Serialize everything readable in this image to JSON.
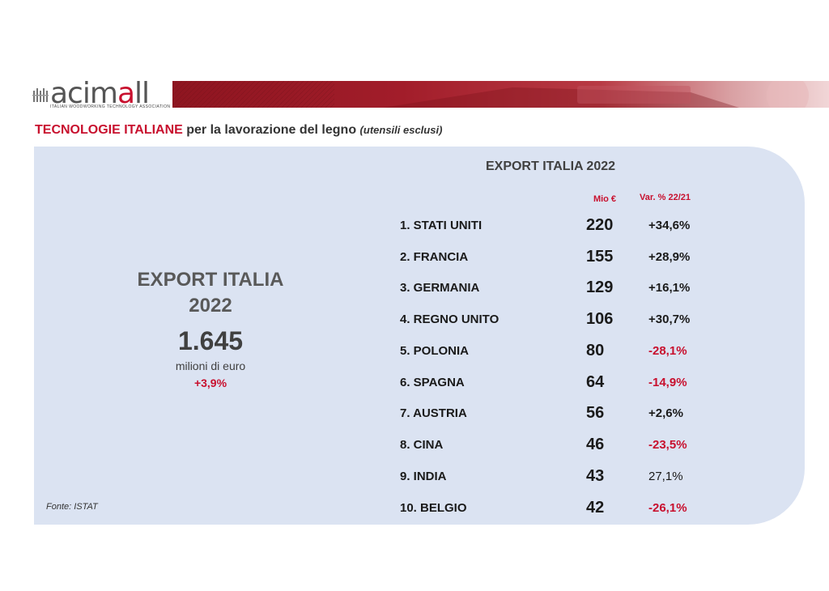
{
  "logo": {
    "wordmark_pre": "acim",
    "wordmark_accent": "a",
    "wordmark_post": "ll",
    "tagline": "ITALIAN WOODWORKING TECHNOLOGY ASSOCIATION"
  },
  "heading": {
    "highlight": "TECNOLOGIE ITALIANE",
    "main": " per la lavorazione del legno ",
    "note": "(utensili esclusi)"
  },
  "summary": {
    "title_line1": "EXPORT ITALIA",
    "title_line2": "2022",
    "value": "1.645",
    "unit": "milioni di euro",
    "change": "+3,9%"
  },
  "source": "Fonte: ISTAT",
  "table": {
    "title": "EXPORT ITALIA 2022",
    "col_value": "Mio €",
    "col_change": "Var. % 22/21",
    "rows": [
      {
        "country": "1. STATI UNITI",
        "value": "220",
        "change": "+34,6%"
      },
      {
        "country": "2. FRANCIA",
        "value": "155",
        "change": "+28,9%"
      },
      {
        "country": "3. GERMANIA",
        "value": "129",
        "change": "+16,1%"
      },
      {
        "country": "4. REGNO UNITO",
        "value": "106",
        "change": "+30,7%"
      },
      {
        "country": "5. POLONIA",
        "value": "80",
        "change": "-28,1%"
      },
      {
        "country": "6. SPAGNA",
        "value": "64",
        "change": "-14,9%"
      },
      {
        "country": "7. AUSTRIA",
        "value": "56",
        "change": "+2,6%"
      },
      {
        "country": "8. CINA",
        "value": "46",
        "change": "-23,5%"
      },
      {
        "country": "9. INDIA",
        "value": "43",
        "change": "27,1%"
      },
      {
        "country": "10. BELGIO",
        "value": "42",
        "change": "-26,1%"
      }
    ]
  },
  "colors": {
    "accent": "#c8102e",
    "panel": "#dbe3f2",
    "text": "#404040"
  }
}
